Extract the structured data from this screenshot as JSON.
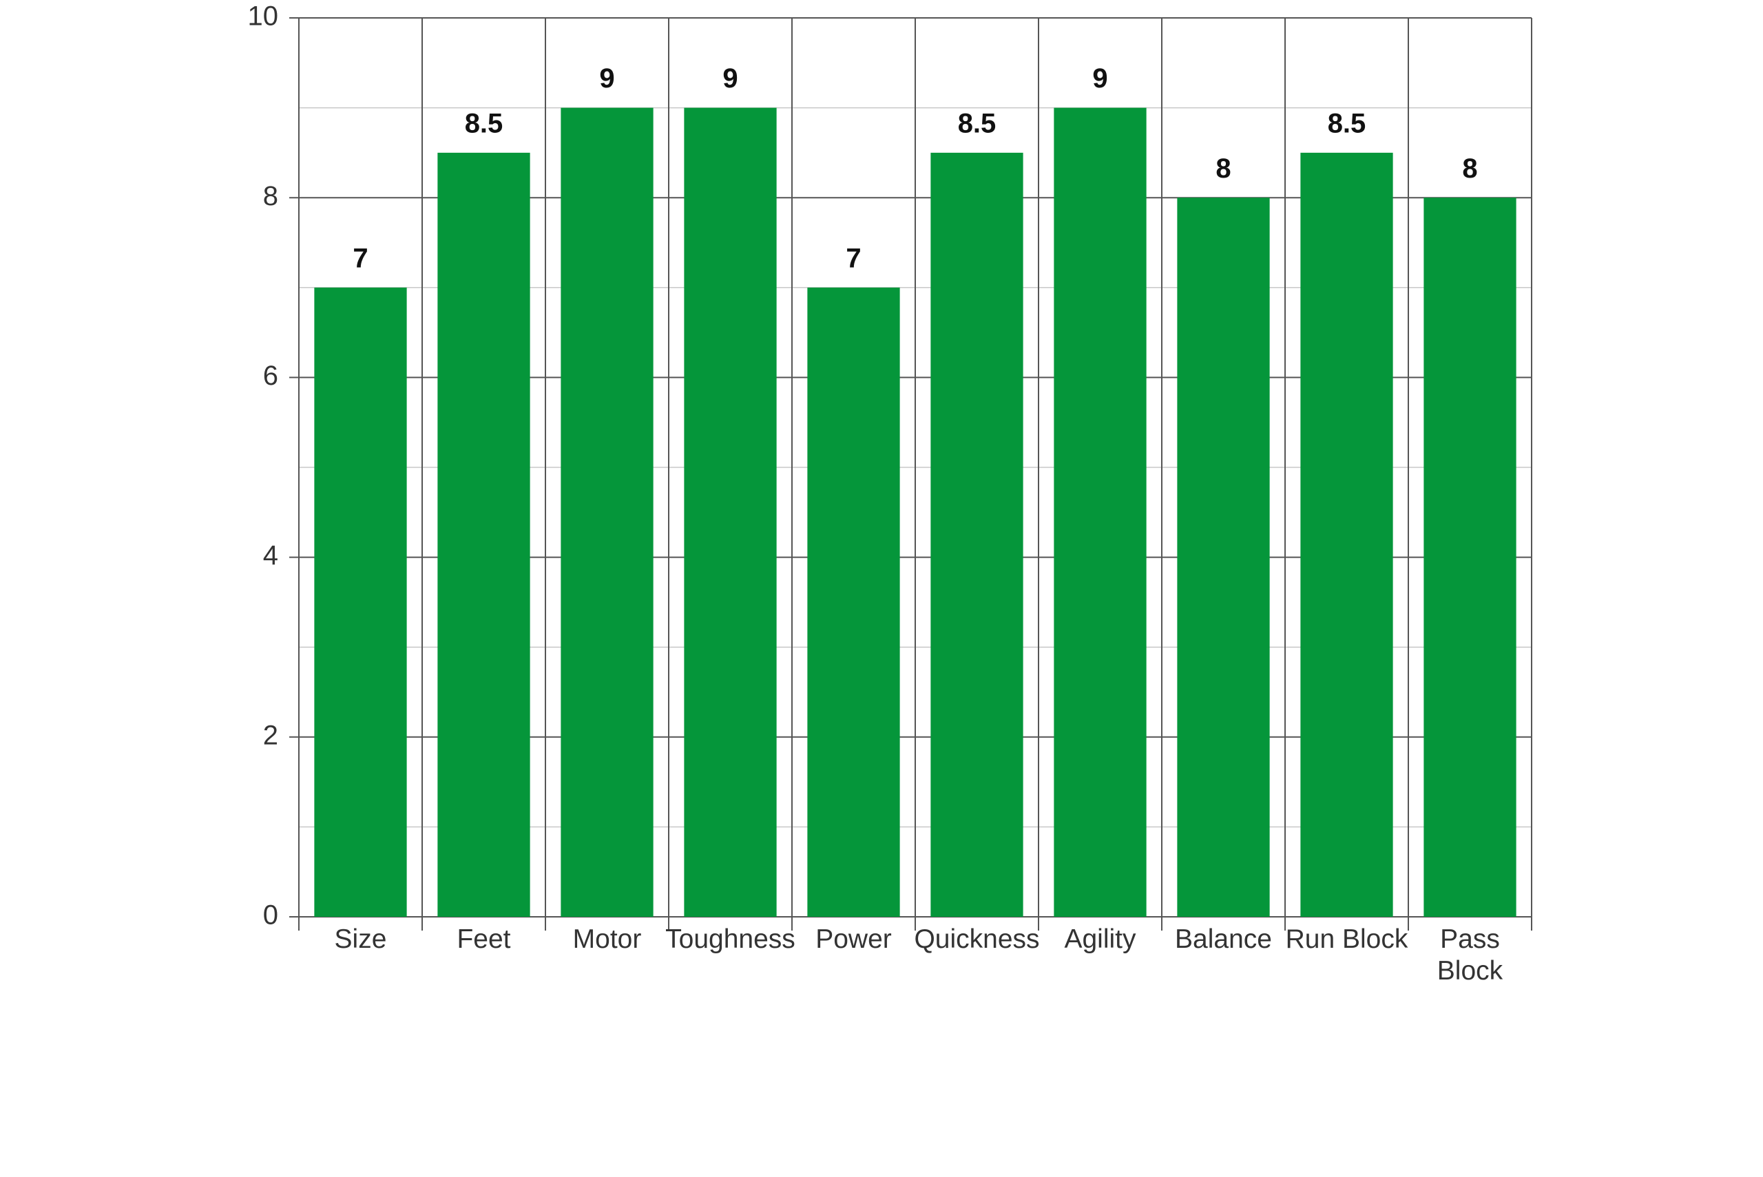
{
  "chart_data": {
    "type": "bar",
    "categories": [
      "Size",
      "Feet",
      "Motor",
      "Toughness",
      "Power",
      "Quickness",
      "Agility",
      "Balance",
      "Run Block",
      "Pass Block"
    ],
    "values": [
      7,
      8.5,
      9,
      9,
      7,
      8.5,
      9,
      8,
      8.5,
      8
    ],
    "color": "#05963a",
    "ylim": [
      0,
      10
    ],
    "yticks": [
      0,
      2,
      4,
      6,
      8,
      10
    ],
    "minor_yticks": [
      1,
      3,
      5,
      7,
      9
    ],
    "grid": true
  }
}
